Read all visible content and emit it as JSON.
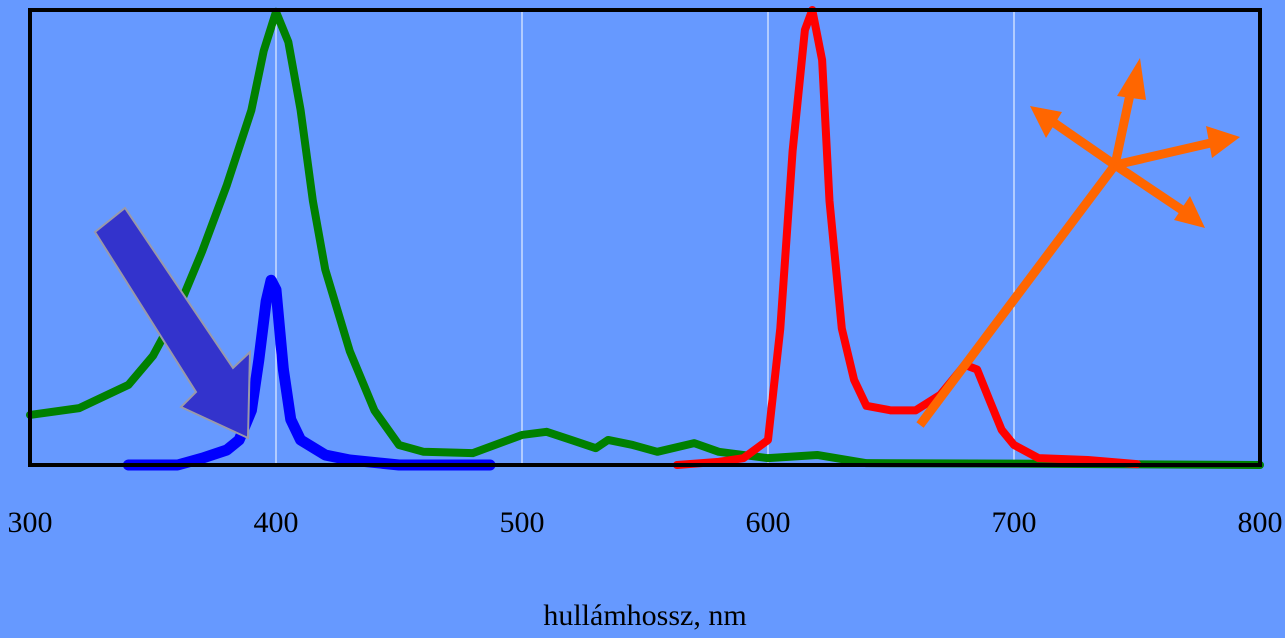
{
  "chart_data": {
    "type": "line",
    "x_label": "hullámhossz, nm",
    "xlim": [
      300,
      800
    ],
    "xticks": [
      300,
      400,
      500,
      600,
      700,
      800
    ],
    "ylim": [
      0,
      100
    ],
    "grid": true,
    "series": [
      {
        "color": "#008000",
        "x": [
          300,
          320,
          340,
          350,
          360,
          370,
          380,
          390,
          395,
          400,
          405,
          410,
          415,
          420,
          430,
          440,
          450,
          460,
          480,
          500,
          510,
          520,
          530,
          535,
          545,
          555,
          570,
          580,
          600,
          620,
          640,
          700,
          800
        ],
        "values": [
          11,
          12.5,
          17.6,
          24,
          34,
          47,
          61.5,
          78,
          91,
          99.6,
          93,
          78,
          58,
          43,
          25,
          12,
          4.4,
          2.9,
          2.6,
          6.6,
          7.3,
          5.5,
          3.7,
          5.5,
          4.4,
          2.9,
          4.8,
          2.9,
          1.5,
          2.2,
          0.4,
          0.3,
          0
        ]
      },
      {
        "color": "#0000ff",
        "x": [
          340,
          360,
          370,
          380,
          385,
          390,
          393,
          396,
          398,
          400,
          403,
          406,
          410,
          420,
          430,
          450,
          487
        ],
        "values": [
          0,
          0,
          1.5,
          3.3,
          5.5,
          12,
          23,
          36,
          40.6,
          38.5,
          21,
          10,
          5.5,
          2.2,
          1.1,
          0,
          0
        ]
      },
      {
        "color": "#ff0000",
        "x": [
          563,
          580,
          590,
          600,
          605,
          610,
          615,
          618,
          622,
          625,
          630,
          635,
          640,
          650,
          660,
          670,
          680,
          685,
          690,
          695,
          700,
          710,
          730,
          750
        ],
        "values": [
          0,
          0.7,
          1.5,
          5.5,
          30,
          69,
          95.6,
          100,
          89,
          58,
          30,
          18.7,
          13,
          12,
          12,
          15.4,
          22,
          21,
          14.3,
          7.7,
          4.4,
          1.5,
          1.1,
          0.2
        ]
      }
    ]
  }
}
